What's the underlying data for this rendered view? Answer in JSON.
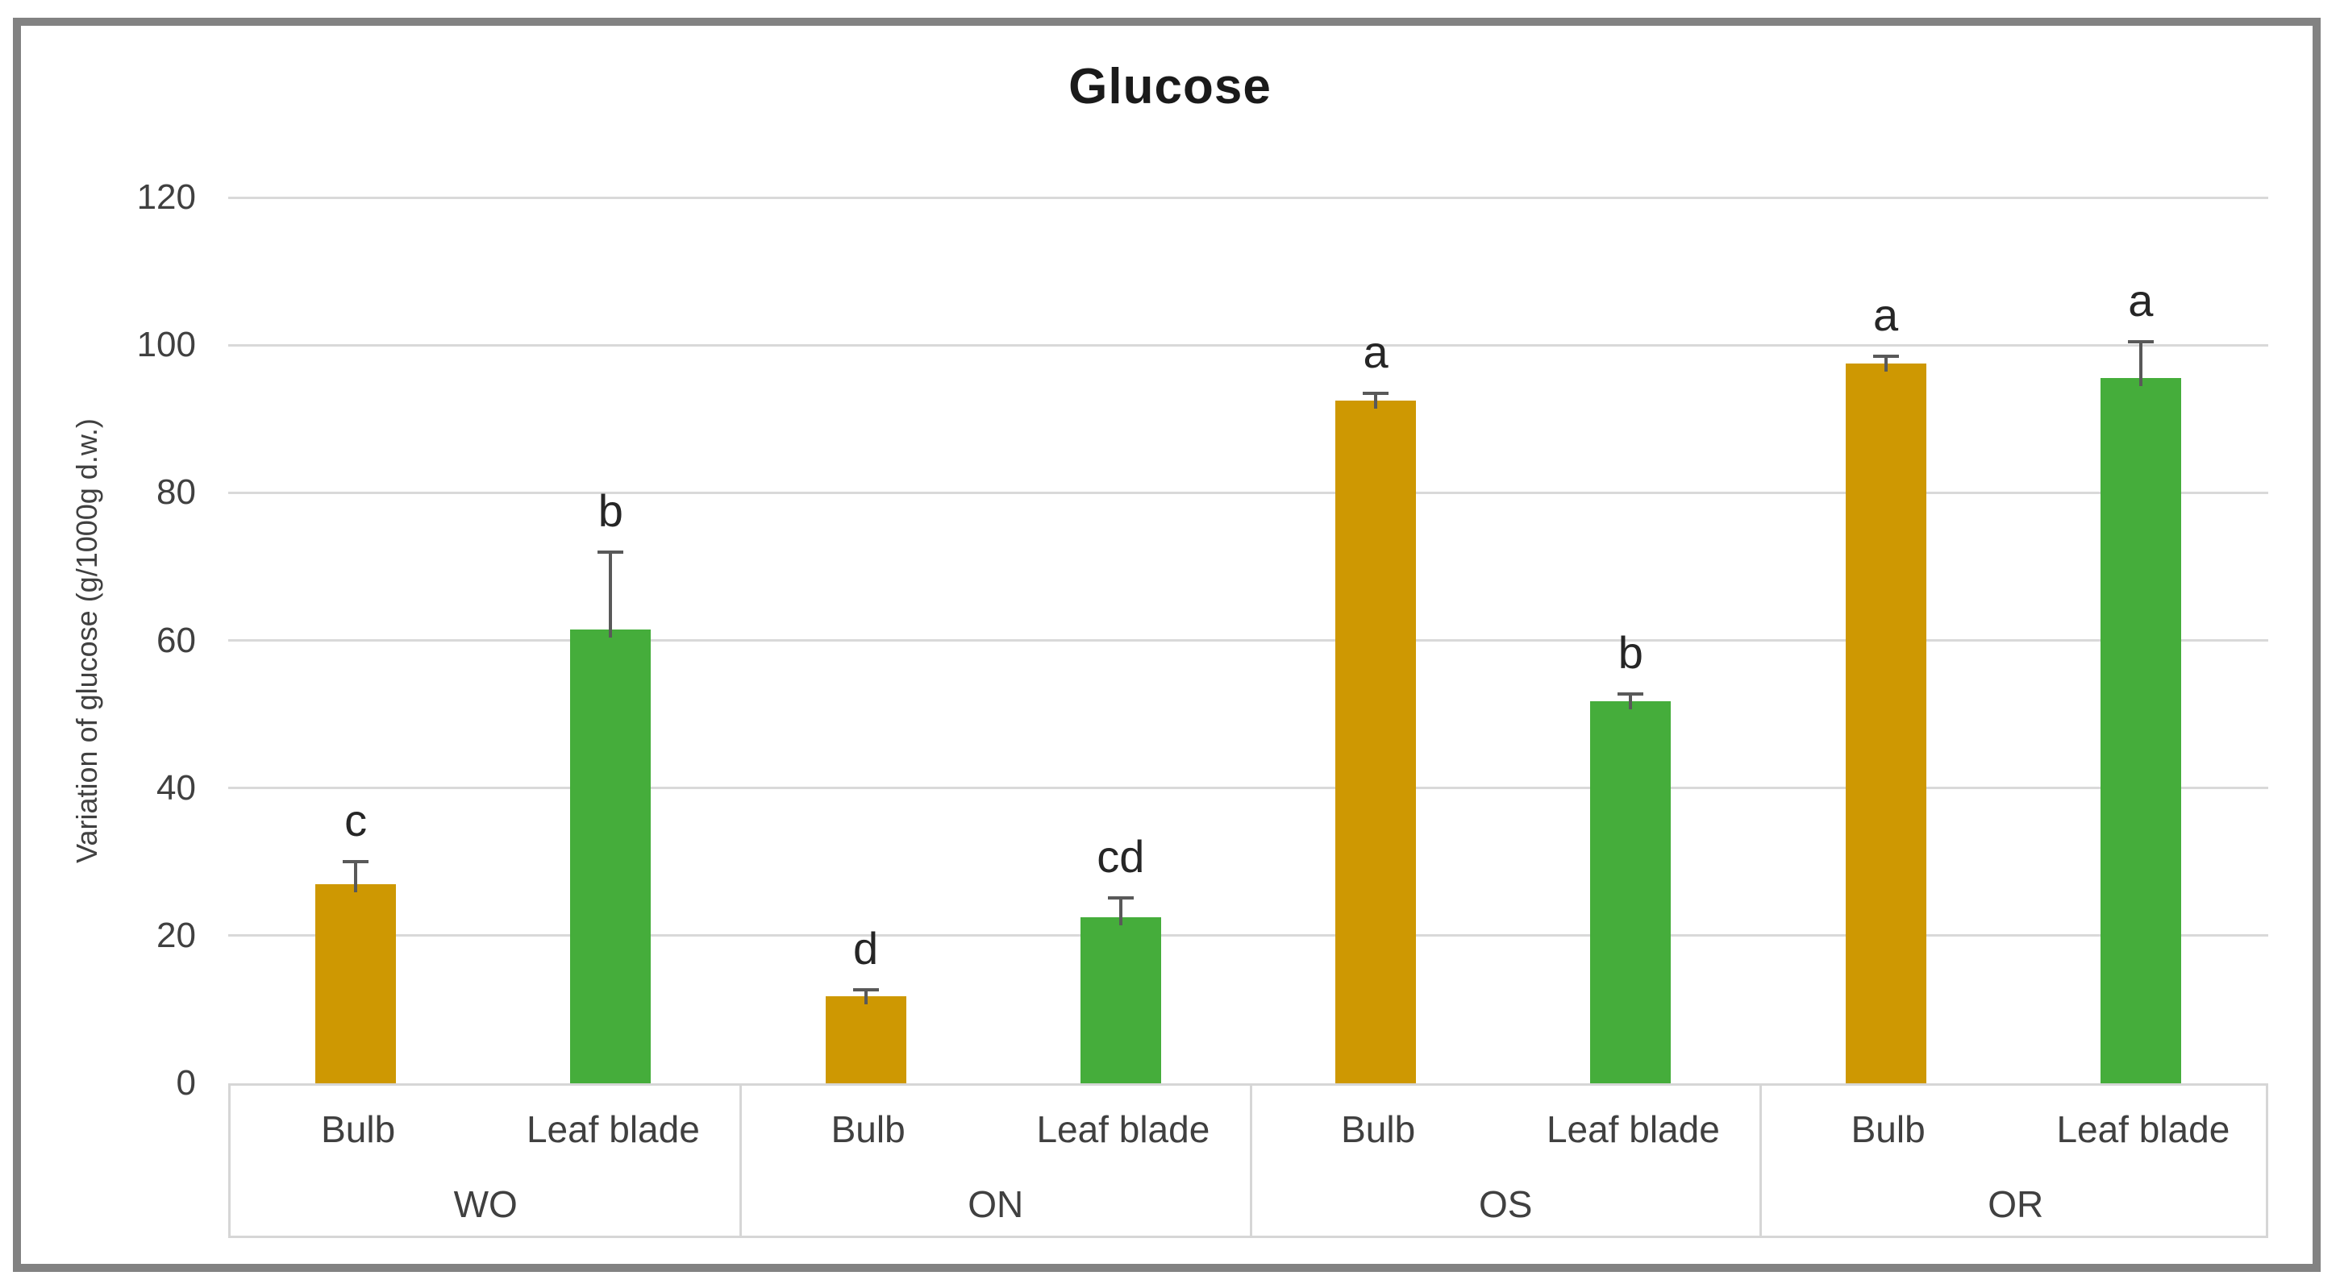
{
  "title": "Glucose",
  "y_axis": {
    "label": "Variation of glucose (g/1000g d.w.)",
    "min": 0,
    "max": 120,
    "tick_step": 20,
    "ticks": [
      "0",
      "20",
      "40",
      "60",
      "80",
      "100",
      "120"
    ]
  },
  "x_axis": {
    "groups": [
      "WO",
      "ON",
      "OS",
      "OR"
    ],
    "subcategories": [
      "Bulb",
      "Leaf blade"
    ]
  },
  "chart_data": {
    "type": "bar",
    "title": "Glucose",
    "xlabel": "",
    "ylabel": "Variation of glucose (g/1000g d.w.)",
    "ylim": [
      0,
      120
    ],
    "grid": true,
    "legend": "none",
    "categories": [
      "WO",
      "ON",
      "OS",
      "OR"
    ],
    "series": [
      {
        "name": "Bulb",
        "color": "#CE9802",
        "values": [
          27.0,
          11.8,
          92.5,
          97.5
        ],
        "errors_plus": [
          3.0,
          0.9,
          1.0,
          1.0
        ],
        "letters": [
          "c",
          "d",
          "a",
          "a"
        ]
      },
      {
        "name": "Leaf blade",
        "color": "#45AD3B",
        "values": [
          61.5,
          22.5,
          51.8,
          95.5
        ],
        "errors_plus": [
          10.5,
          2.6,
          0.9,
          5.0
        ],
        "letters": [
          "b",
          "cd",
          "b",
          "a"
        ]
      }
    ]
  },
  "colors": {
    "bulb_bar": "#CE9802",
    "leaf_blade_bar": "#45AD3B",
    "gridline": "#d9d9d9",
    "table_border": "#d6d6d6",
    "error_bar": "#595959",
    "letter_text": "#262626",
    "axis_text": "#404040",
    "frame_border": "#828282",
    "background": "#ffffff"
  }
}
